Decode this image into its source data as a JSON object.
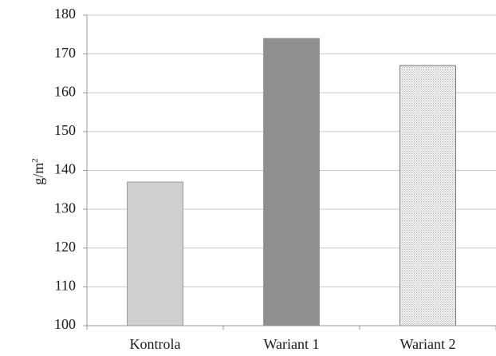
{
  "chart_data": {
    "type": "bar",
    "categories": [
      "Kontrola",
      "Wariant 1",
      "Wariant 2"
    ],
    "values": [
      137,
      174,
      167
    ],
    "ylabel": "g/m",
    "ylabel_superscript": "2",
    "ylim": [
      100,
      180
    ],
    "yticks": [
      "100",
      "110",
      "120",
      "130",
      "140",
      "150",
      "160",
      "170",
      "180"
    ],
    "grid": true,
    "bar_colors": [
      "#cfcfcf",
      "#8f8f8f",
      "#e6e6e6"
    ],
    "bar_patterns": [
      "solid",
      "solid",
      "dotted"
    ]
  }
}
